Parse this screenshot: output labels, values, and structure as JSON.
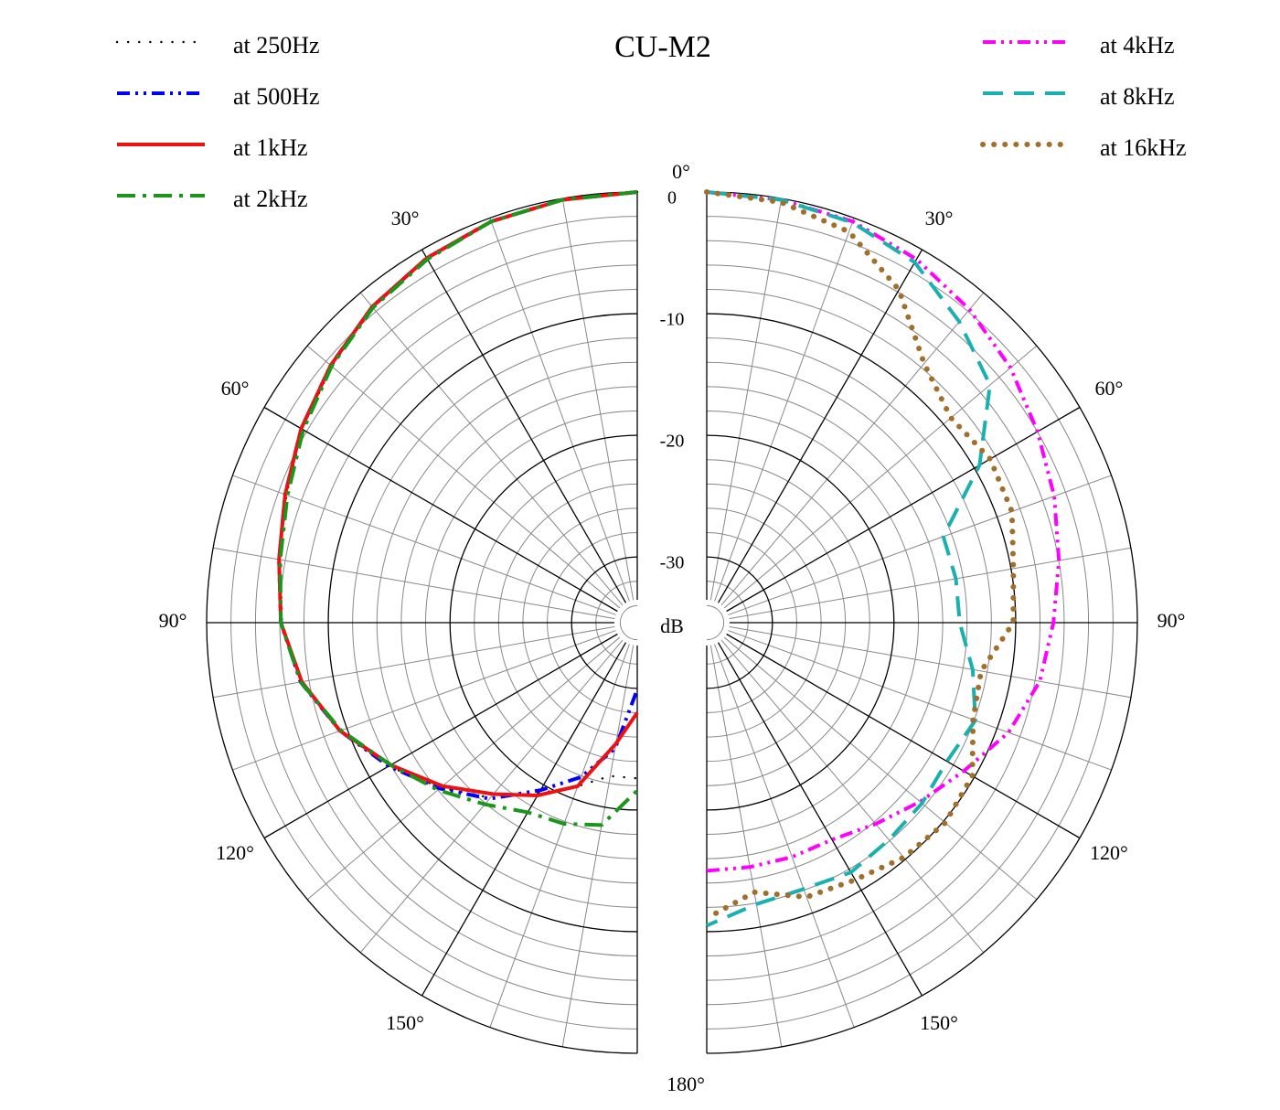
{
  "chart_data": {
    "type": "polar-split",
    "title": "CU-M2",
    "r_label": "dB",
    "rlim": [
      -35.4,
      0
    ],
    "rticks": [
      0,
      -10,
      -20,
      -30
    ],
    "rminor_ticks": [
      -2,
      -4,
      -6,
      -8,
      -12,
      -14,
      -16,
      -18,
      -22,
      -24,
      -26,
      -28,
      -32,
      -34
    ],
    "theta_ticks": [
      {
        "value": 0,
        "label": "0°"
      },
      {
        "value": 30,
        "label": "30°"
      },
      {
        "value": 60,
        "label": "60°"
      },
      {
        "value": 90,
        "label": "90°"
      },
      {
        "value": 120,
        "label": "120°"
      },
      {
        "value": 150,
        "label": "150°"
      },
      {
        "value": 180,
        "label": "180°"
      }
    ],
    "theta_minor_ticks": [
      10,
      20,
      40,
      50,
      70,
      80,
      100,
      110,
      130,
      140,
      160,
      170
    ],
    "theta": [
      0,
      10,
      20,
      30,
      40,
      50,
      60,
      70,
      80,
      90,
      100,
      110,
      120,
      130,
      140,
      150,
      160,
      170,
      180
    ],
    "series": [
      {
        "name": "at 250Hz",
        "color": "#000000",
        "linestyle": "dotted",
        "side": "left",
        "values": [
          0,
          -0.1,
          -0.3,
          -0.8,
          -1.6,
          -2.6,
          -3.6,
          -4.7,
          -5.6,
          -6.2,
          -7.3,
          -9.4,
          -11.8,
          -14.3,
          -16.6,
          -19.2,
          -21.1,
          -22.6,
          -22.6
        ]
      },
      {
        "name": "at 500Hz",
        "color": "#0000ff",
        "linestyle": "dashdotdot",
        "side": "left",
        "values": [
          0,
          -0.1,
          -0.3,
          -0.8,
          -1.5,
          -2.5,
          -3.5,
          -4.6,
          -5.5,
          -6.1,
          -7.3,
          -9.4,
          -11.8,
          -14.2,
          -16.5,
          -19.5,
          -21.9,
          -24.9,
          -29.9
        ]
      },
      {
        "name": "at 1kHz",
        "color": "#ee1111",
        "linestyle": "solid",
        "side": "left",
        "values": [
          0,
          -0.1,
          -0.3,
          -0.8,
          -1.5,
          -2.5,
          -3.5,
          -4.6,
          -5.5,
          -6.1,
          -7.4,
          -9.4,
          -12.0,
          -14.5,
          -17.0,
          -19.0,
          -21.1,
          -25.3,
          -28.0
        ]
      },
      {
        "name": "at 2kHz",
        "color": "#1a961a",
        "linestyle": "dashdot",
        "side": "left",
        "values": [
          0,
          -0.1,
          -0.3,
          -0.9,
          -1.6,
          -2.6,
          -3.7,
          -4.8,
          -5.6,
          -6.1,
          -7.3,
          -9.5,
          -12.0,
          -14.0,
          -15.9,
          -17.4,
          -17.8,
          -18.5,
          -21.6
        ]
      },
      {
        "name": "at 4kHz",
        "color": "#ff00ff",
        "linestyle": "dashdotdot",
        "side": "right",
        "values": [
          0,
          -0.1,
          -0.3,
          -0.9,
          -1.8,
          -2.8,
          -4.0,
          -5.0,
          -6.0,
          -6.9,
          -7.6,
          -9.0,
          -11.0,
          -12.5,
          -13.8,
          -14.8,
          -14.9,
          -15.0,
          -15.0
        ]
      },
      {
        "name": "at 8kHz",
        "color": "#1ab0b0",
        "linestyle": "dashed",
        "side": "right",
        "values": [
          0,
          -0.1,
          -0.4,
          -1.2,
          -3.1,
          -5.0,
          -9.5,
          -14.7,
          -14.6,
          -14.6,
          -13.2,
          -11.9,
          -12.6,
          -12.3,
          -12.1,
          -11.7,
          -12.1,
          -11.9,
          -10.5
        ]
      },
      {
        "name": "at 16kHz",
        "color": "#a0702a",
        "linestyle": "dotted",
        "side": "right",
        "values": [
          0,
          -0.3,
          -1.2,
          -3.8,
          -7.6,
          -9.2,
          -8.5,
          -8.7,
          -9.8,
          -10.2,
          -12.5,
          -12.1,
          -10.2,
          -9.8,
          -10.2,
          -11.0,
          -11.4,
          -12.9,
          -11.1
        ]
      }
    ]
  }
}
